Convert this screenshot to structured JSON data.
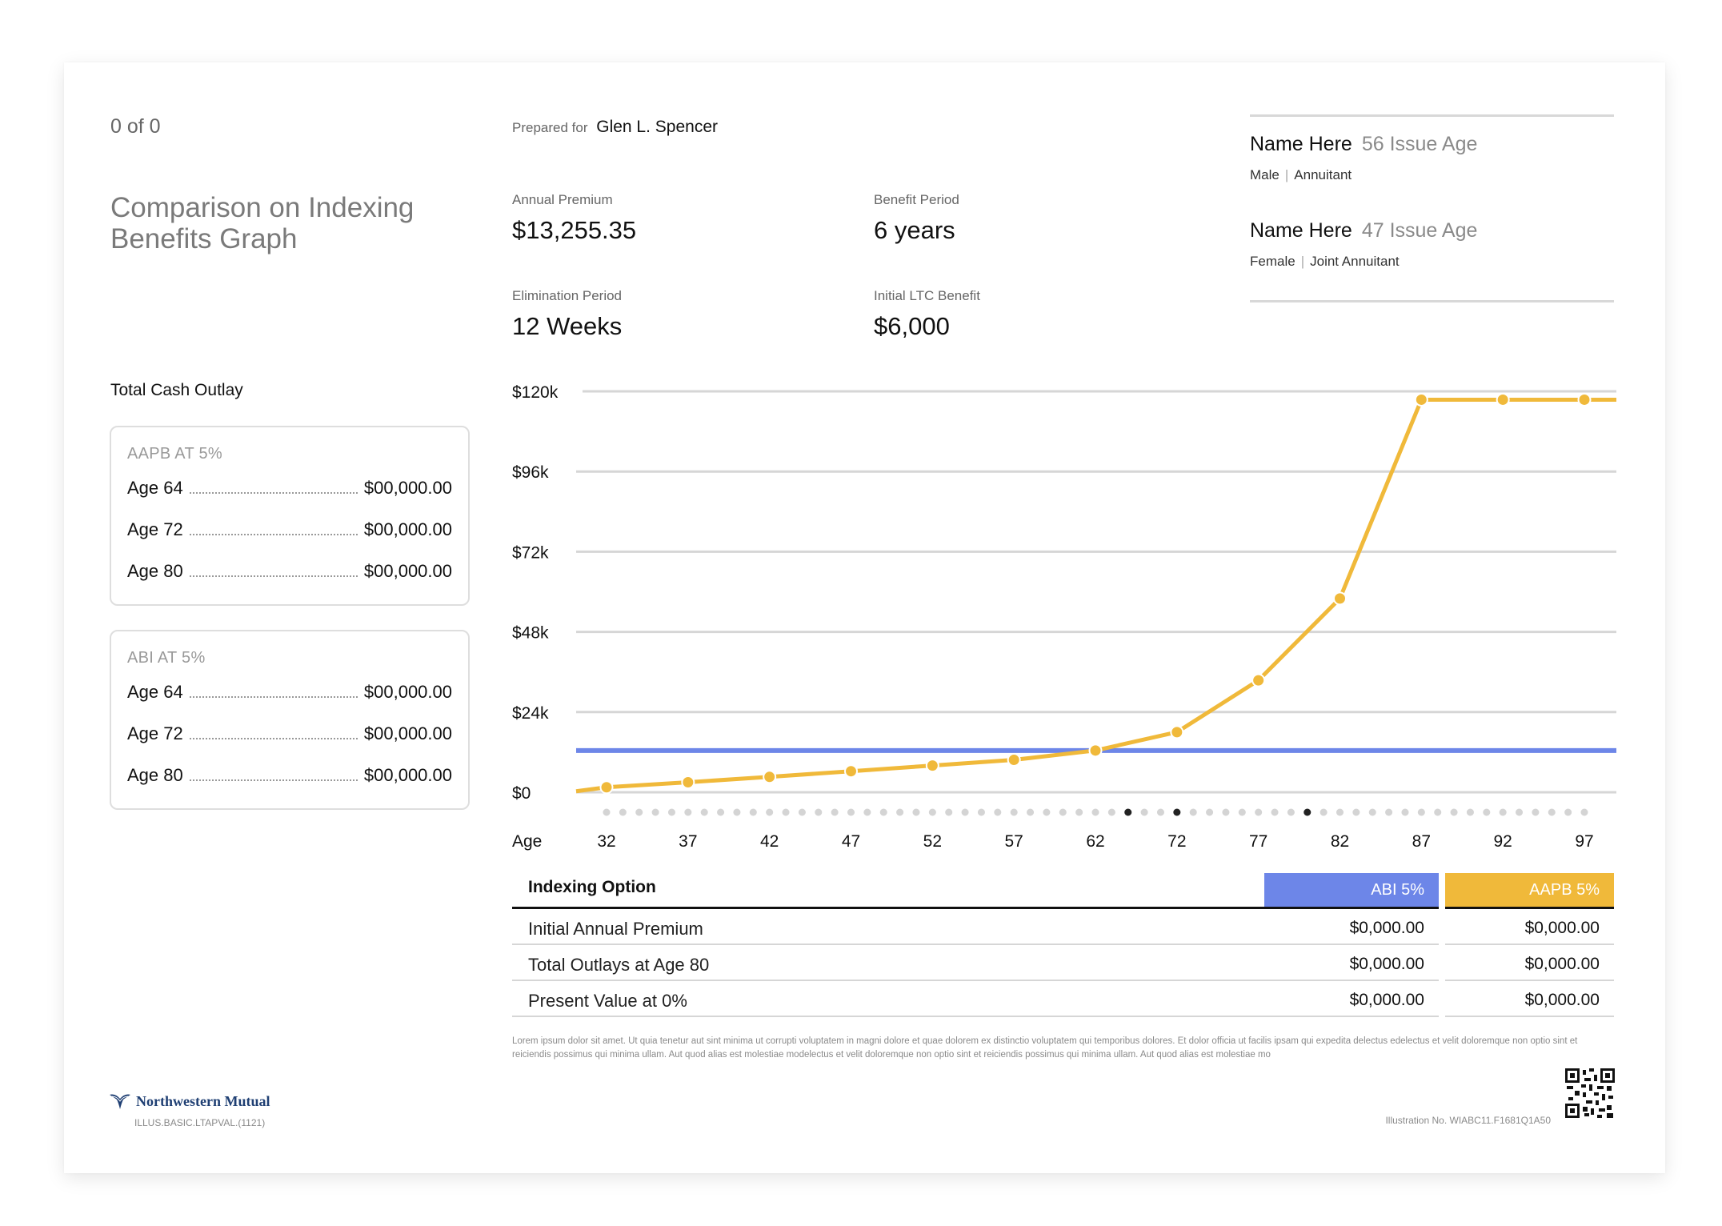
{
  "header": {
    "page_counter": "0 of 0",
    "title": "Comparison on Indexing Benefits Graph",
    "prepared_label": "Prepared for",
    "prepared_name": "Glen L. Spencer"
  },
  "stats": {
    "annual_premium_label": "Annual Premium",
    "annual_premium": "$13,255.35",
    "benefit_period_label": "Benefit Period",
    "benefit_period": "6 years",
    "elimination_label": "Elimination Period",
    "elimination": "12 Weeks",
    "ltc_label": "Initial LTC Benefit",
    "ltc": "$6,000"
  },
  "people": [
    {
      "name": "Name Here",
      "age": "56 Issue Age",
      "gender": "Male",
      "role": "Annuitant"
    },
    {
      "name": "Name Here",
      "age": "47 Issue Age",
      "gender": "Female",
      "role": "Joint Annuitant"
    }
  ],
  "outlay": {
    "heading": "Total Cash Outlay",
    "cards": [
      {
        "title": "AAPB AT 5%",
        "rows": [
          {
            "label": "Age 64",
            "value": "$00,000.00"
          },
          {
            "label": "Age 72",
            "value": "$00,000.00"
          },
          {
            "label": "Age 80",
            "value": "$00,000.00"
          }
        ]
      },
      {
        "title": "ABI AT 5%",
        "rows": [
          {
            "label": "Age 64",
            "value": "$00,000.00"
          },
          {
            "label": "Age 72",
            "value": "$00,000.00"
          },
          {
            "label": "Age 80",
            "value": "$00,000.00"
          }
        ]
      }
    ]
  },
  "chart_data": {
    "type": "line",
    "xlabel": "Age",
    "x_ticks": [
      "32",
      "37",
      "42",
      "47",
      "52",
      "57",
      "62",
      "72",
      "77",
      "82",
      "87",
      "92",
      "97"
    ],
    "y_ticks": [
      "$0",
      "$24k",
      "$48k",
      "$72k",
      "$96k",
      "$120k"
    ],
    "ylim": [
      0,
      120000
    ],
    "grid": true,
    "series": [
      {
        "color": "#f0b93a",
        "points": [
          {
            "x": 32,
            "y": 1500
          },
          {
            "x": 37,
            "y": 3000
          },
          {
            "x": 42,
            "y": 4600
          },
          {
            "x": 47,
            "y": 6300
          },
          {
            "x": 52,
            "y": 8000
          },
          {
            "x": 57,
            "y": 9700
          },
          {
            "x": 62,
            "y": 12500
          },
          {
            "x": 72,
            "y": 18000
          },
          {
            "x": 77,
            "y": 33500
          },
          {
            "x": 82,
            "y": 58000
          },
          {
            "x": 87,
            "y": 117500
          },
          {
            "x": 92,
            "y": 117500
          },
          {
            "x": 97,
            "y": 117500
          }
        ]
      },
      {
        "color": "#6d86e8",
        "constant": 12500
      }
    ],
    "dot_count": 61,
    "highlighted_dots": [
      32,
      35,
      43
    ]
  },
  "table": {
    "header_label": "Indexing Option",
    "col1": "ABI 5%",
    "col2": "AAPB 5%",
    "col1_color": "#6d86e8",
    "col2_color": "#f0b93a",
    "rows": [
      {
        "label": "Initial Annual Premium",
        "v1": "$0,000.00",
        "v2": "$0,000.00"
      },
      {
        "label": "Total Outlays at Age 80",
        "v1": "$0,000.00",
        "v2": "$0,000.00"
      },
      {
        "label": "Present Value at 0%",
        "v1": "$0,000.00",
        "v2": "$0,000.00"
      }
    ]
  },
  "footer": {
    "disclaimer": "Lorem ipsum dolor sit amet. Ut quia tenetur aut sint minima ut corrupti voluptatem in magni dolore et quae dolorem ex distinctio voluptatem qui temporibus dolores. Et dolor officia ut facilis ipsam qui expedita delectus edelectus et velit doloremque non optio sint et reiciendis possimus qui minima ullam. Aut quod alias est molestiae modelectus et velit doloremque non optio sint et reiciendis possimus qui minima ullam. Aut quod alias est molestiae mo",
    "illustration": "Illustration No. WIABC11.F1681Q1A50",
    "brand": "Northwestern Mutual",
    "form_code": "ILLUS.BASIC.LTAPVAL.(1121)"
  }
}
